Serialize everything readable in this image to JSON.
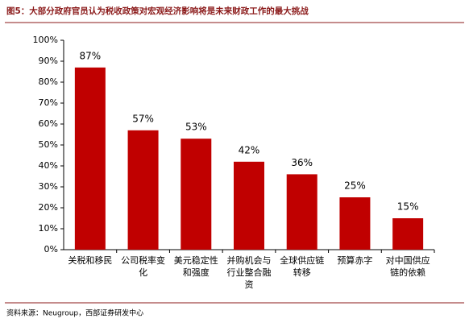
{
  "chart_data": {
    "type": "bar",
    "title": "图5：大部分政府官员认为税收政策对宏观经济影响将是未来财政工作的最大挑战",
    "source": "资料来源：Neugroup，西部证券研发中心",
    "categories": [
      "关税和移民",
      "公司税率变化",
      "美元稳定性和强度",
      "并购机会与行业整合融资",
      "全球供应链转移",
      "预算赤字",
      "对中国供应链的依赖"
    ],
    "values": [
      87,
      57,
      53,
      42,
      36,
      25,
      15
    ],
    "value_labels": [
      "87%",
      "57%",
      "53%",
      "42%",
      "36%",
      "25%",
      "15%"
    ],
    "color": "#c00000",
    "ylim": [
      0,
      100
    ],
    "yticks": [
      {
        "value": 0,
        "label": "0%"
      },
      {
        "value": 10,
        "label": "10%"
      },
      {
        "value": 20,
        "label": "20%"
      },
      {
        "value": 30,
        "label": "30%"
      },
      {
        "value": 40,
        "label": "40%"
      },
      {
        "value": 50,
        "label": "50%"
      },
      {
        "value": 60,
        "label": "60%"
      },
      {
        "value": 70,
        "label": "70%"
      },
      {
        "value": 80,
        "label": "80%"
      },
      {
        "value": 90,
        "label": "90%"
      },
      {
        "value": 100,
        "label": "100%"
      }
    ],
    "grid": false
  }
}
